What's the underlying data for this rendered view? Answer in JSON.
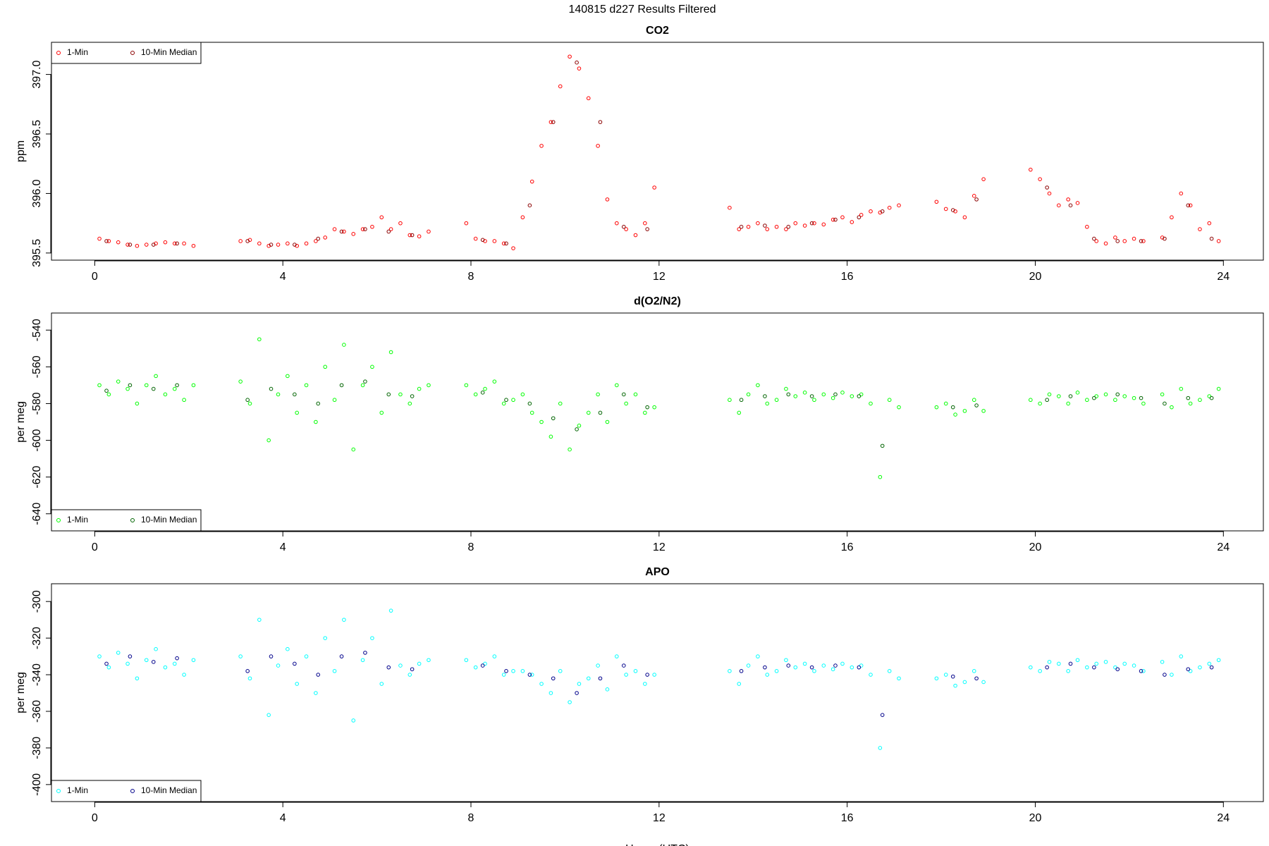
{
  "title": "140815   d227   Results Filtered",
  "chart_data": [
    {
      "type": "scatter",
      "title": "CO2",
      "ylabel": "ppm",
      "legend": "top-left",
      "xlim": [
        -0.92,
        24.85
      ],
      "xticks": [
        0,
        4,
        8,
        12,
        16,
        20,
        24
      ],
      "ylim": [
        395.44,
        397.27
      ],
      "yticks": [
        {
          "value": 395.5,
          "label": "395.5"
        },
        {
          "value": 396,
          "label": "396.0"
        },
        {
          "value": 396.5,
          "label": "396.5"
        },
        {
          "value": 397,
          "label": "397.0"
        }
      ],
      "series": [
        {
          "name": "1-Min",
          "color": "#ff0000",
          "x": [
            0.1,
            0.3,
            0.5,
            0.7,
            0.9,
            1.1,
            1.3,
            1.5,
            1.7,
            1.9,
            2.1,
            3.1,
            3.3,
            3.5,
            3.7,
            3.9,
            4.1,
            4.3,
            4.5,
            4.7,
            4.9,
            5.1,
            5.3,
            5.5,
            5.7,
            5.9,
            6.1,
            6.3,
            6.5,
            6.7,
            6.9,
            7.1,
            7.9,
            8.1,
            8.3,
            8.5,
            8.7,
            8.9,
            9.1,
            9.3,
            9.5,
            9.7,
            9.9,
            10.1,
            10.3,
            10.5,
            10.7,
            10.9,
            11.1,
            11.3,
            11.5,
            11.7,
            11.9,
            13.5,
            13.7,
            13.9,
            14.1,
            14.3,
            14.5,
            14.7,
            14.9,
            15.1,
            15.3,
            15.5,
            15.7,
            15.9,
            16.1,
            16.3,
            16.5,
            16.7,
            16.9,
            17.1,
            17.9,
            18.1,
            18.3,
            18.5,
            18.7,
            18.9,
            19.9,
            20.1,
            20.3,
            20.5,
            20.7,
            20.9,
            21.1,
            21.3,
            21.5,
            21.7,
            21.9,
            22.1,
            22.3,
            22.7,
            22.9,
            23.1,
            23.3,
            23.5,
            23.7,
            23.9
          ],
          "values": [
            395.62,
            395.6,
            395.59,
            395.57,
            395.56,
            395.57,
            395.58,
            395.59,
            395.58,
            395.58,
            395.56,
            395.6,
            395.61,
            395.58,
            395.56,
            395.57,
            395.58,
            395.56,
            395.58,
            395.6,
            395.63,
            395.7,
            395.68,
            395.66,
            395.7,
            395.72,
            395.8,
            395.7,
            395.75,
            395.65,
            395.64,
            395.68,
            395.75,
            395.62,
            395.6,
            395.6,
            395.58,
            395.54,
            395.8,
            396.1,
            396.4,
            396.6,
            396.9,
            397.15,
            397.05,
            396.8,
            396.4,
            395.95,
            395.75,
            395.7,
            395.65,
            395.75,
            396.05,
            395.88,
            395.7,
            395.72,
            395.75,
            395.7,
            395.72,
            395.7,
            395.75,
            395.73,
            395.75,
            395.74,
            395.78,
            395.8,
            395.76,
            395.82,
            395.85,
            395.84,
            395.88,
            395.9,
            395.93,
            395.87,
            395.85,
            395.8,
            395.98,
            396.12,
            396.2,
            396.12,
            396.0,
            395.9,
            395.95,
            395.92,
            395.72,
            395.6,
            395.58,
            395.63,
            395.6,
            395.62,
            395.6,
            395.63,
            395.8,
            396.0,
            395.9,
            395.7,
            395.75,
            395.6
          ]
        },
        {
          "name": "10-Min Median",
          "color": "#8b0000",
          "x": [
            0.25,
            0.75,
            1.25,
            1.75,
            3.25,
            3.75,
            4.25,
            4.75,
            5.25,
            5.75,
            6.25,
            6.75,
            8.25,
            8.75,
            9.25,
            9.75,
            10.25,
            10.75,
            11.25,
            11.75,
            13.75,
            14.25,
            14.75,
            15.25,
            15.75,
            16.25,
            16.75,
            18.25,
            18.75,
            20.25,
            20.75,
            21.25,
            21.75,
            22.25,
            22.75,
            23.25,
            23.75
          ],
          "values": [
            395.6,
            395.57,
            395.57,
            395.58,
            395.6,
            395.57,
            395.57,
            395.62,
            395.68,
            395.7,
            395.68,
            395.65,
            395.61,
            395.58,
            395.9,
            396.6,
            397.1,
            396.6,
            395.72,
            395.7,
            395.72,
            395.73,
            395.72,
            395.75,
            395.78,
            395.8,
            395.85,
            395.86,
            395.95,
            396.05,
            395.9,
            395.62,
            395.6,
            395.6,
            395.62,
            395.9,
            395.62
          ]
        }
      ]
    },
    {
      "type": "scatter",
      "title": "d(O2/N2)",
      "ylabel": "per meg",
      "legend": "bottom-left",
      "xlim": [
        -0.92,
        24.85
      ],
      "xticks": [
        0,
        4,
        8,
        12,
        16,
        20,
        24
      ],
      "ylim": [
        -649.3,
        -530.7
      ],
      "yticks": [
        -640,
        -620,
        -600,
        -580,
        -560,
        -540
      ],
      "series": [
        {
          "name": "1-Min",
          "color": "#00ff00",
          "x": [
            0.1,
            0.3,
            0.5,
            0.7,
            0.9,
            1.1,
            1.3,
            1.5,
            1.7,
            1.9,
            2.1,
            3.1,
            3.3,
            3.5,
            3.7,
            3.9,
            4.1,
            4.3,
            4.5,
            4.7,
            4.9,
            5.1,
            5.3,
            5.5,
            5.7,
            5.9,
            6.1,
            6.3,
            6.5,
            6.7,
            6.9,
            7.1,
            7.9,
            8.1,
            8.3,
            8.5,
            8.7,
            8.9,
            9.1,
            9.3,
            9.5,
            9.7,
            9.9,
            10.1,
            10.3,
            10.5,
            10.7,
            10.9,
            11.1,
            11.3,
            11.5,
            11.7,
            11.9,
            13.5,
            13.7,
            13.9,
            14.1,
            14.3,
            14.5,
            14.7,
            14.9,
            15.1,
            15.3,
            15.5,
            15.7,
            15.9,
            16.1,
            16.3,
            16.5,
            16.7,
            16.9,
            17.1,
            17.9,
            18.1,
            18.3,
            18.5,
            18.7,
            18.9,
            19.9,
            20.1,
            20.3,
            20.5,
            20.7,
            20.9,
            21.1,
            21.3,
            21.5,
            21.7,
            21.9,
            22.1,
            22.3,
            22.7,
            22.9,
            23.1,
            23.3,
            23.5,
            23.7,
            23.9
          ],
          "values": [
            -570,
            -575,
            -568,
            -572,
            -580,
            -570,
            -565,
            -575,
            -572,
            -578,
            -570,
            -568,
            -580,
            -545,
            -600,
            -575,
            -565,
            -585,
            -570,
            -590,
            -560,
            -578,
            -548,
            -605,
            -570,
            -560,
            -585,
            -552,
            -575,
            -580,
            -572,
            -570,
            -570,
            -575,
            -572,
            -568,
            -580,
            -578,
            -575,
            -585,
            -590,
            -598,
            -580,
            -605,
            -592,
            -585,
            -575,
            -590,
            -570,
            -580,
            -575,
            -585,
            -582,
            -578,
            -585,
            -575,
            -570,
            -580,
            -578,
            -572,
            -576,
            -574,
            -578,
            -575,
            -577,
            -574,
            -576,
            -575,
            -580,
            -620,
            -578,
            -582,
            -582,
            -580,
            -586,
            -584,
            -578,
            -584,
            -578,
            -580,
            -575,
            -576,
            -580,
            -574,
            -578,
            -576,
            -575,
            -578,
            -576,
            -577,
            -580,
            -575,
            -582,
            -572,
            -580,
            -578,
            -576,
            -572
          ]
        },
        {
          "name": "10-Min Median",
          "color": "#006400",
          "x": [
            0.25,
            0.75,
            1.25,
            1.75,
            3.25,
            3.75,
            4.25,
            4.75,
            5.25,
            5.75,
            6.25,
            6.75,
            8.25,
            8.75,
            9.25,
            9.75,
            10.25,
            10.75,
            11.25,
            11.75,
            13.75,
            14.25,
            14.75,
            15.25,
            15.75,
            16.25,
            16.75,
            18.25,
            18.75,
            20.25,
            20.75,
            21.25,
            21.75,
            22.25,
            22.75,
            23.25,
            23.75
          ],
          "values": [
            -573,
            -570,
            -572,
            -570,
            -578,
            -572,
            -575,
            -580,
            -570,
            -568,
            -575,
            -576,
            -574,
            -578,
            -580,
            -588,
            -594,
            -585,
            -575,
            -582,
            -578,
            -576,
            -575,
            -576,
            -575,
            -576,
            -603,
            -582,
            -581,
            -578,
            -576,
            -577,
            -575,
            -577,
            -580,
            -577,
            -577
          ]
        }
      ]
    },
    {
      "type": "scatter",
      "title": "APO",
      "ylabel": "per meg",
      "xlabel": "Hours (UTC)",
      "legend": "bottom-left",
      "xlim": [
        -0.92,
        24.85
      ],
      "xticks": [
        0,
        4,
        8,
        12,
        16,
        20,
        24
      ],
      "ylim": [
        -409.3,
        -290.3
      ],
      "yticks": [
        -400,
        -380,
        -360,
        -340,
        -320,
        -300
      ],
      "series": [
        {
          "name": "1-Min",
          "color": "#00ffff",
          "x": [
            0.1,
            0.3,
            0.5,
            0.7,
            0.9,
            1.1,
            1.3,
            1.5,
            1.7,
            1.9,
            2.1,
            3.1,
            3.3,
            3.5,
            3.7,
            3.9,
            4.1,
            4.3,
            4.5,
            4.7,
            4.9,
            5.1,
            5.3,
            5.5,
            5.7,
            5.9,
            6.1,
            6.3,
            6.5,
            6.7,
            6.9,
            7.1,
            7.9,
            8.1,
            8.3,
            8.5,
            8.7,
            8.9,
            9.1,
            9.3,
            9.5,
            9.7,
            9.9,
            10.1,
            10.3,
            10.5,
            10.7,
            10.9,
            11.1,
            11.3,
            11.5,
            11.7,
            11.9,
            13.5,
            13.7,
            13.9,
            14.1,
            14.3,
            14.5,
            14.7,
            14.9,
            15.1,
            15.3,
            15.5,
            15.7,
            15.9,
            16.1,
            16.3,
            16.5,
            16.7,
            16.9,
            17.1,
            17.9,
            18.1,
            18.3,
            18.5,
            18.7,
            18.9,
            19.9,
            20.1,
            20.3,
            20.5,
            20.7,
            20.9,
            21.1,
            21.3,
            21.5,
            21.7,
            21.9,
            22.1,
            22.3,
            22.7,
            22.9,
            23.1,
            23.3,
            23.5,
            23.7,
            23.9
          ],
          "values": [
            -330,
            -336,
            -328,
            -334,
            -342,
            -332,
            -326,
            -336,
            -334,
            -340,
            -332,
            -330,
            -342,
            -310,
            -362,
            -335,
            -326,
            -345,
            -330,
            -350,
            -320,
            -338,
            -310,
            -365,
            -332,
            -320,
            -345,
            -305,
            -335,
            -340,
            -334,
            -332,
            -332,
            -336,
            -334,
            -330,
            -340,
            -338,
            -338,
            -340,
            -345,
            -350,
            -338,
            -355,
            -345,
            -342,
            -335,
            -348,
            -330,
            -340,
            -338,
            -345,
            -340,
            -338,
            -345,
            -335,
            -330,
            -340,
            -338,
            -332,
            -336,
            -334,
            -338,
            -335,
            -337,
            -334,
            -336,
            -335,
            -340,
            -380,
            -338,
            -342,
            -342,
            -340,
            -346,
            -344,
            -338,
            -344,
            -336,
            -338,
            -333,
            -334,
            -338,
            -332,
            -336,
            -334,
            -333,
            -336,
            -334,
            -335,
            -338,
            -333,
            -340,
            -330,
            -338,
            -336,
            -334,
            -332
          ]
        },
        {
          "name": "10-Min Median",
          "color": "#00008b",
          "x": [
            0.25,
            0.75,
            1.25,
            1.75,
            3.25,
            3.75,
            4.25,
            4.75,
            5.25,
            5.75,
            6.25,
            6.75,
            8.25,
            8.75,
            9.25,
            9.75,
            10.25,
            10.75,
            11.25,
            11.75,
            13.75,
            14.25,
            14.75,
            15.25,
            15.75,
            16.25,
            16.75,
            18.25,
            18.75,
            20.25,
            20.75,
            21.25,
            21.75,
            22.25,
            22.75,
            23.25,
            23.75
          ],
          "values": [
            -334,
            -330,
            -333,
            -331,
            -338,
            -330,
            -334,
            -340,
            -330,
            -328,
            -336,
            -337,
            -335,
            -338,
            -340,
            -342,
            -350,
            -342,
            -335,
            -340,
            -338,
            -336,
            -335,
            -336,
            -335,
            -336,
            -362,
            -341,
            -342,
            -336,
            -334,
            -336,
            -337,
            -338,
            -340,
            -337,
            -336
          ]
        }
      ]
    }
  ]
}
